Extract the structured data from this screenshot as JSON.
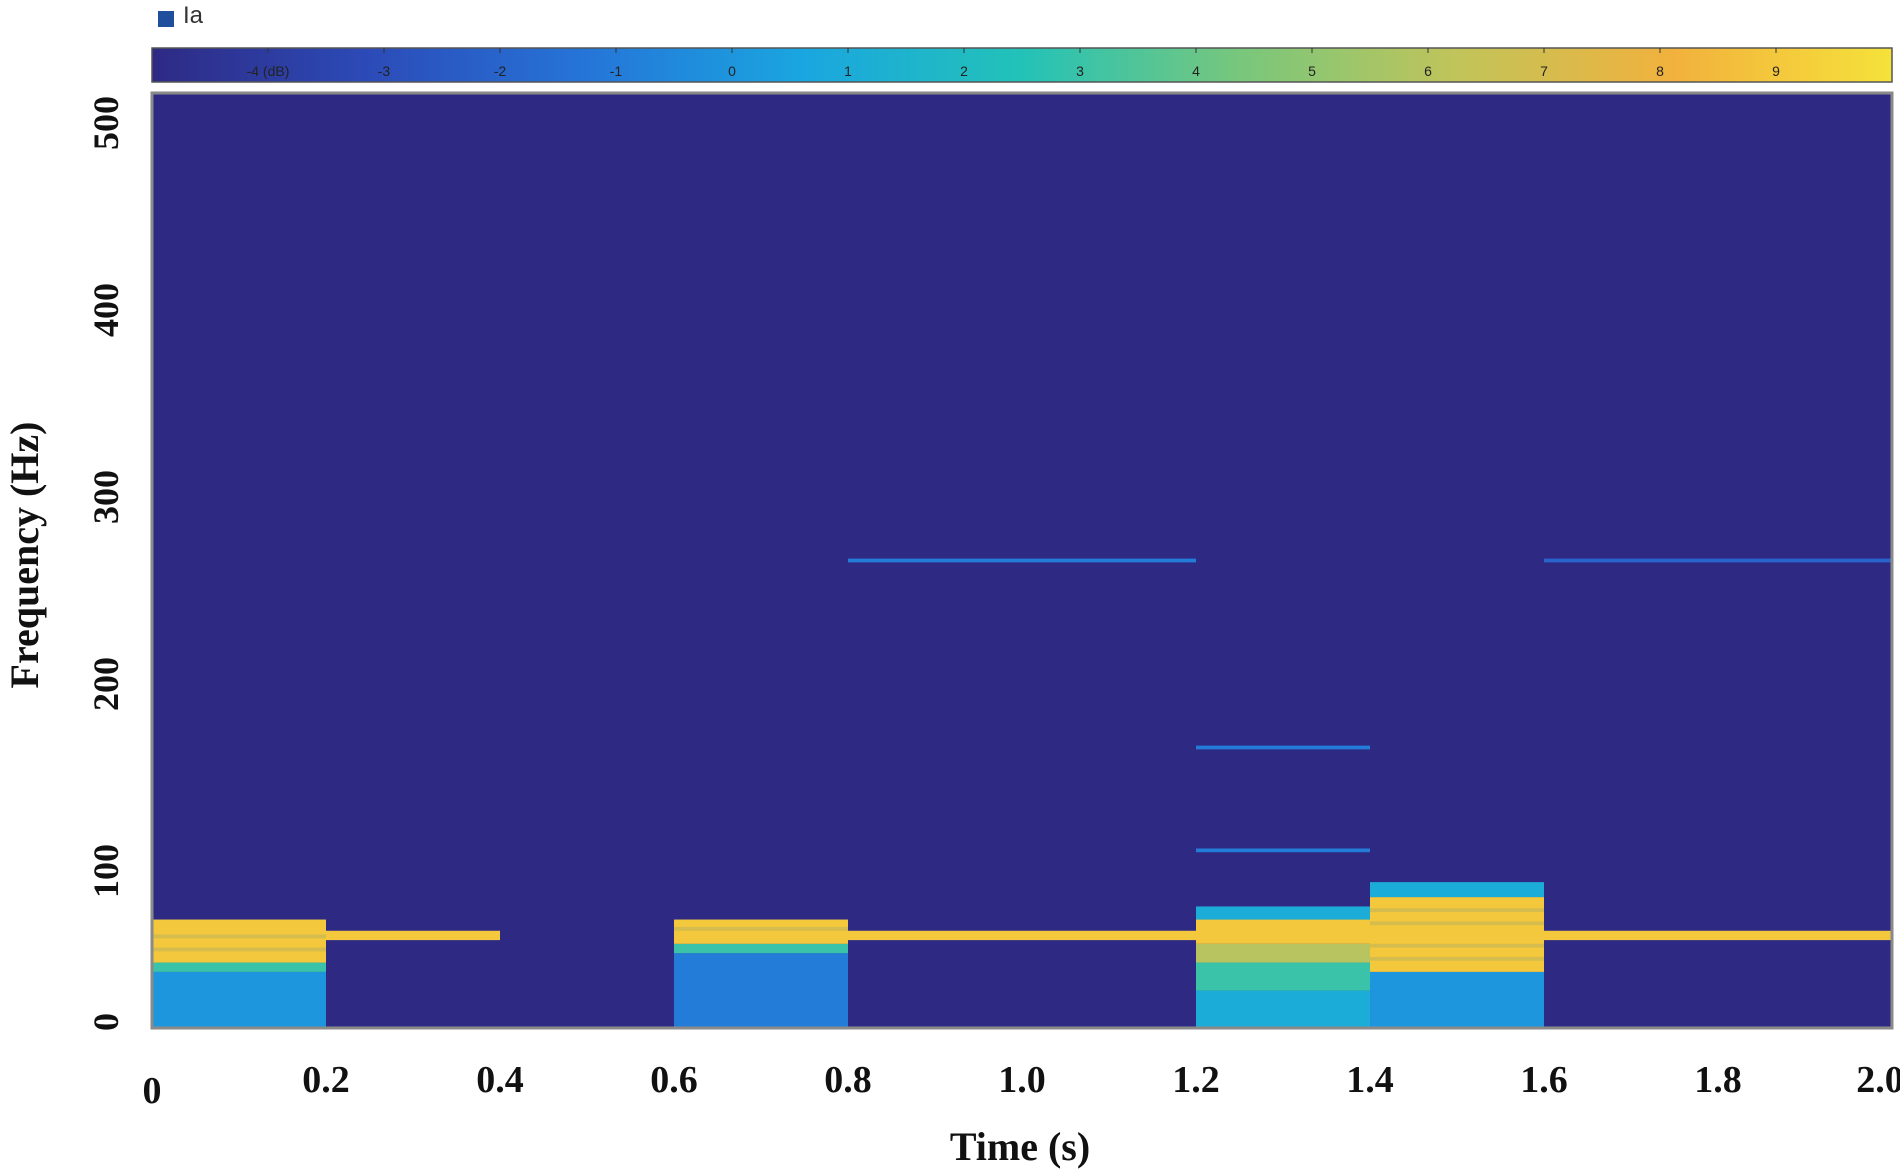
{
  "legend": {
    "label": "Ia",
    "color": "#1f4e9c"
  },
  "colorbar": {
    "ticks": [
      "-4 (dB)",
      "-3",
      "-2",
      "-1",
      "0",
      "1",
      "2",
      "3",
      "4",
      "5",
      "6",
      "7",
      "8",
      "9"
    ],
    "range": [
      -5,
      10
    ],
    "colors": [
      "#2e2a84",
      "#2c4bb8",
      "#2575d8",
      "#1aa6e0",
      "#23c2b8",
      "#78c77c",
      "#c1c45a",
      "#f2b13d",
      "#f5e23a"
    ]
  },
  "chart_data": {
    "type": "heatmap",
    "title": "",
    "xlabel": "Time (s)",
    "ylabel": "Frequency (Hz)",
    "xlim": [
      0,
      2.0
    ],
    "ylim": [
      0,
      500
    ],
    "x_ticks": [
      "0",
      "0.2",
      "0.4",
      "0.6",
      "0.8",
      "1.0",
      "1.2",
      "1.4",
      "1.6",
      "1.8",
      "2.0"
    ],
    "y_ticks": [
      "0",
      "100",
      "200",
      "300",
      "400",
      "500"
    ],
    "background_level_db": -5,
    "segments": [
      {
        "t0": 0.0,
        "t1": 0.2,
        "bands": [
          {
            "f0": 0,
            "f1": 30,
            "level": 0
          },
          {
            "f0": 30,
            "f1": 35,
            "level": 3
          },
          {
            "f0": 35,
            "f1": 58,
            "level": 9
          },
          {
            "f0": 41,
            "f1": 43,
            "level": 7
          },
          {
            "f0": 48,
            "f1": 50,
            "level": 7
          }
        ]
      },
      {
        "t0": 0.2,
        "t1": 0.4,
        "bands": [
          {
            "f0": 47,
            "f1": 52,
            "level": 9
          }
        ]
      },
      {
        "t0": 0.6,
        "t1": 0.8,
        "bands": [
          {
            "f0": 0,
            "f1": 40,
            "level": -1
          },
          {
            "f0": 40,
            "f1": 45,
            "level": 3
          },
          {
            "f0": 45,
            "f1": 58,
            "level": 9
          },
          {
            "f0": 52,
            "f1": 54,
            "level": 7
          }
        ]
      },
      {
        "t0": 0.8,
        "t1": 1.2,
        "bands": [
          {
            "f0": 47,
            "f1": 52,
            "level": 9
          },
          {
            "f0": 249,
            "f1": 251,
            "level": -1
          }
        ]
      },
      {
        "t0": 1.2,
        "t1": 1.4,
        "bands": [
          {
            "f0": 0,
            "f1": 20,
            "level": 1
          },
          {
            "f0": 20,
            "f1": 35,
            "level": 3
          },
          {
            "f0": 35,
            "f1": 45,
            "level": 6
          },
          {
            "f0": 45,
            "f1": 58,
            "level": 9
          },
          {
            "f0": 58,
            "f1": 65,
            "level": 1
          },
          {
            "f0": 94,
            "f1": 96,
            "level": -1
          },
          {
            "f0": 149,
            "f1": 151,
            "level": -1
          }
        ]
      },
      {
        "t0": 1.4,
        "t1": 1.6,
        "bands": [
          {
            "f0": 0,
            "f1": 30,
            "level": 0
          },
          {
            "f0": 30,
            "f1": 70,
            "level": 9
          },
          {
            "f0": 36,
            "f1": 38,
            "level": 7
          },
          {
            "f0": 43,
            "f1": 45,
            "level": 7
          },
          {
            "f0": 55,
            "f1": 57,
            "level": 7
          },
          {
            "f0": 62,
            "f1": 64,
            "level": 7
          },
          {
            "f0": 70,
            "f1": 78,
            "level": 1
          }
        ]
      },
      {
        "t0": 1.6,
        "t1": 2.0,
        "bands": [
          {
            "f0": 47,
            "f1": 52,
            "level": 9
          },
          {
            "f0": 249,
            "f1": 251,
            "level": -2
          }
        ]
      }
    ]
  }
}
